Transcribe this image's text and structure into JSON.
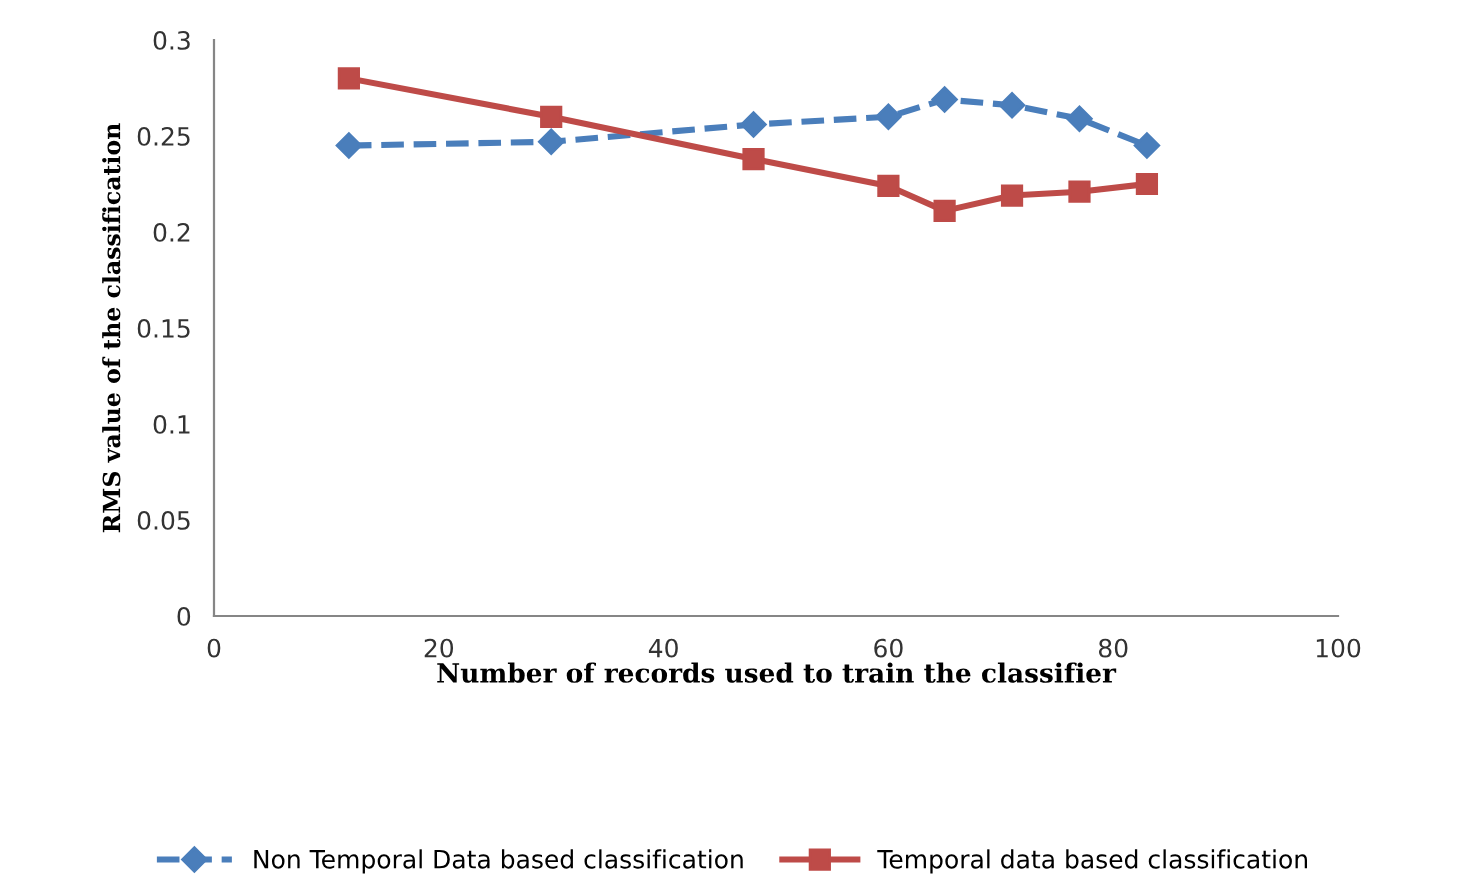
{
  "chart_data": {
    "type": "line",
    "xlabel": "Number of records used to train the classifier",
    "ylabel": "RMS value of the classification",
    "x": [
      12,
      30,
      48,
      60,
      65,
      71,
      77,
      83
    ],
    "series": [
      {
        "name": "Non Temporal Data based classification",
        "color": "#4a7ebb",
        "values": [
          0.245,
          0.247,
          0.256,
          0.26,
          0.269,
          0.266,
          0.259,
          0.245
        ],
        "marker": "diamond",
        "line_style": "dashed"
      },
      {
        "name": "Temporal data based classification",
        "color": "#be4b48",
        "values": [
          0.28,
          0.26,
          0.238,
          0.224,
          0.211,
          0.219,
          0.221,
          0.225
        ],
        "marker": "square",
        "line_style": "solid"
      }
    ],
    "xlim": [
      0,
      100
    ],
    "xticks": [
      0,
      20,
      40,
      60,
      80,
      100
    ],
    "ylim": [
      0,
      0.3
    ],
    "yticks": [
      0,
      0.05,
      0.1,
      0.15,
      0.2,
      0.25,
      0.3
    ],
    "grid": false,
    "legend": "bottom"
  }
}
